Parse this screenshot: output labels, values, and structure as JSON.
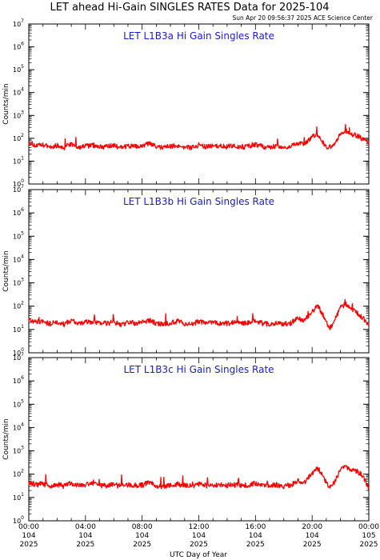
{
  "title": "LET ahead Hi-Gain SINGLES RATES Data for 2025-104",
  "timestamp": "Sun Apr 20 09:56:37 2025 ACE Science Center",
  "xlabel": "UTC Day of Year",
  "ylabel": "Counts/min",
  "colors": {
    "series": "#ff0000",
    "panel_title": "#1a1ad6",
    "axes": "#000000"
  },
  "chart_data": [
    {
      "type": "line",
      "title": "LET L1B3a Hi Gain Singles Rate",
      "ylabel": "Counts/min",
      "xlabel": "",
      "yscale": "log",
      "ylim": [
        1,
        10000000
      ],
      "xlim_hours": [
        0,
        24
      ],
      "grid": false,
      "y_ticks": [
        {
          "base": "10",
          "exp": "0"
        },
        {
          "base": "10",
          "exp": "1"
        },
        {
          "base": "10",
          "exp": "2"
        },
        {
          "base": "10",
          "exp": "3"
        },
        {
          "base": "10",
          "exp": "4"
        },
        {
          "base": "10",
          "exp": "5"
        },
        {
          "base": "10",
          "exp": "6"
        },
        {
          "base": "10",
          "exp": "7"
        }
      ],
      "series": [
        {
          "x_hours": [
            0,
            0.5,
            1,
            1.5,
            2,
            2.5,
            3,
            3.5,
            4,
            4.5,
            5,
            5.5,
            6,
            6.5,
            7,
            7.5,
            8,
            8.5,
            9,
            9.5,
            10,
            10.5,
            11,
            11.5,
            12,
            12.5,
            13,
            13.5,
            14,
            14.5,
            15,
            15.5,
            16,
            16.5,
            17,
            17.5,
            18,
            18.5,
            19,
            19.5,
            20,
            20.4,
            20.8,
            21,
            21.2,
            21.6,
            22,
            22.4,
            22.8,
            23.2,
            23.6,
            24
          ],
          "values": [
            70,
            45,
            50,
            42,
            48,
            40,
            55,
            42,
            45,
            50,
            44,
            42,
            48,
            40,
            46,
            43,
            45,
            60,
            42,
            40,
            44,
            48,
            42,
            40,
            50,
            42,
            45,
            44,
            43,
            46,
            42,
            45,
            55,
            43,
            42,
            45,
            40,
            44,
            60,
            55,
            120,
            150,
            60,
            45,
            40,
            55,
            180,
            200,
            150,
            130,
            90,
            60
          ]
        }
      ]
    },
    {
      "type": "line",
      "title": "LET L1B3b Hi Gain Singles Rate",
      "ylabel": "Counts/min",
      "xlabel": "",
      "yscale": "log",
      "ylim": [
        1,
        10000000
      ],
      "xlim_hours": [
        0,
        24
      ],
      "grid": false,
      "y_ticks": [
        {
          "base": "10",
          "exp": "0"
        },
        {
          "base": "10",
          "exp": "1"
        },
        {
          "base": "10",
          "exp": "2"
        },
        {
          "base": "10",
          "exp": "3"
        },
        {
          "base": "10",
          "exp": "4"
        },
        {
          "base": "10",
          "exp": "5"
        },
        {
          "base": "10",
          "exp": "6"
        },
        {
          "base": "10",
          "exp": "7"
        }
      ],
      "series": [
        {
          "x_hours": [
            0,
            0.5,
            1,
            1.5,
            2,
            2.5,
            3,
            3.5,
            4,
            4.5,
            5,
            5.5,
            6,
            6.5,
            7,
            7.5,
            8,
            8.5,
            9,
            9.5,
            10,
            10.5,
            11,
            11.5,
            12,
            12.5,
            13,
            13.5,
            14,
            14.5,
            15,
            15.5,
            16,
            16.5,
            17,
            17.5,
            18,
            18.5,
            19,
            19.5,
            20,
            20.4,
            20.8,
            21,
            21.2,
            21.6,
            22,
            22.4,
            22.8,
            23.2,
            23.6,
            24
          ],
          "values": [
            30,
            20,
            22,
            18,
            20,
            17,
            25,
            18,
            20,
            22,
            19,
            18,
            21,
            17,
            20,
            19,
            20,
            25,
            18,
            17,
            19,
            22,
            18,
            17,
            22,
            18,
            20,
            19,
            18,
            20,
            18,
            20,
            25,
            18,
            17,
            20,
            17,
            19,
            30,
            25,
            60,
            100,
            40,
            20,
            10,
            25,
            90,
            120,
            80,
            50,
            30,
            15
          ]
        }
      ]
    },
    {
      "type": "line",
      "title": "LET L1B3c Hi Gain Singles Rate",
      "ylabel": "Counts/min",
      "xlabel": "UTC Day of Year",
      "yscale": "log",
      "ylim": [
        1,
        10000000
      ],
      "xlim_hours": [
        0,
        24
      ],
      "grid": false,
      "y_ticks": [
        {
          "base": "10",
          "exp": "0"
        },
        {
          "base": "10",
          "exp": "1"
        },
        {
          "base": "10",
          "exp": "2"
        },
        {
          "base": "10",
          "exp": "3"
        },
        {
          "base": "10",
          "exp": "4"
        },
        {
          "base": "10",
          "exp": "5"
        },
        {
          "base": "10",
          "exp": "6"
        },
        {
          "base": "10",
          "exp": "7"
        }
      ],
      "x_ticks": [
        {
          "time": "00:00",
          "day": "104",
          "year": "2025"
        },
        {
          "time": "04:00",
          "day": "104",
          "year": "2025"
        },
        {
          "time": "08:00",
          "day": "104",
          "year": "2025"
        },
        {
          "time": "12:00",
          "day": "104",
          "year": "2025"
        },
        {
          "time": "16:00",
          "day": "104",
          "year": "2025"
        },
        {
          "time": "20:00",
          "day": "104",
          "year": "2025"
        },
        {
          "time": "00:00",
          "day": "105",
          "year": "2025"
        }
      ],
      "series": [
        {
          "x_hours": [
            0,
            0.5,
            1,
            1.5,
            2,
            2.5,
            3,
            3.5,
            4,
            4.5,
            5,
            5.5,
            6,
            6.5,
            7,
            7.5,
            8,
            8.5,
            9,
            9.5,
            10,
            10.5,
            11,
            11.5,
            12,
            12.5,
            13,
            13.5,
            14,
            14.5,
            15,
            15.5,
            16,
            16.5,
            17,
            17.5,
            18,
            18.5,
            19,
            19.5,
            20,
            20.4,
            20.8,
            21,
            21.2,
            21.6,
            22,
            22.4,
            22.8,
            23.2,
            23.6,
            24
          ],
          "values": [
            45,
            35,
            38,
            32,
            36,
            30,
            42,
            33,
            35,
            38,
            34,
            32,
            36,
            30,
            35,
            33,
            34,
            45,
            32,
            30,
            33,
            37,
            32,
            30,
            38,
            32,
            35,
            34,
            33,
            35,
            32,
            34,
            42,
            33,
            32,
            35,
            30,
            34,
            50,
            45,
            110,
            180,
            80,
            40,
            30,
            45,
            160,
            200,
            160,
            130,
            80,
            25
          ]
        }
      ]
    }
  ]
}
